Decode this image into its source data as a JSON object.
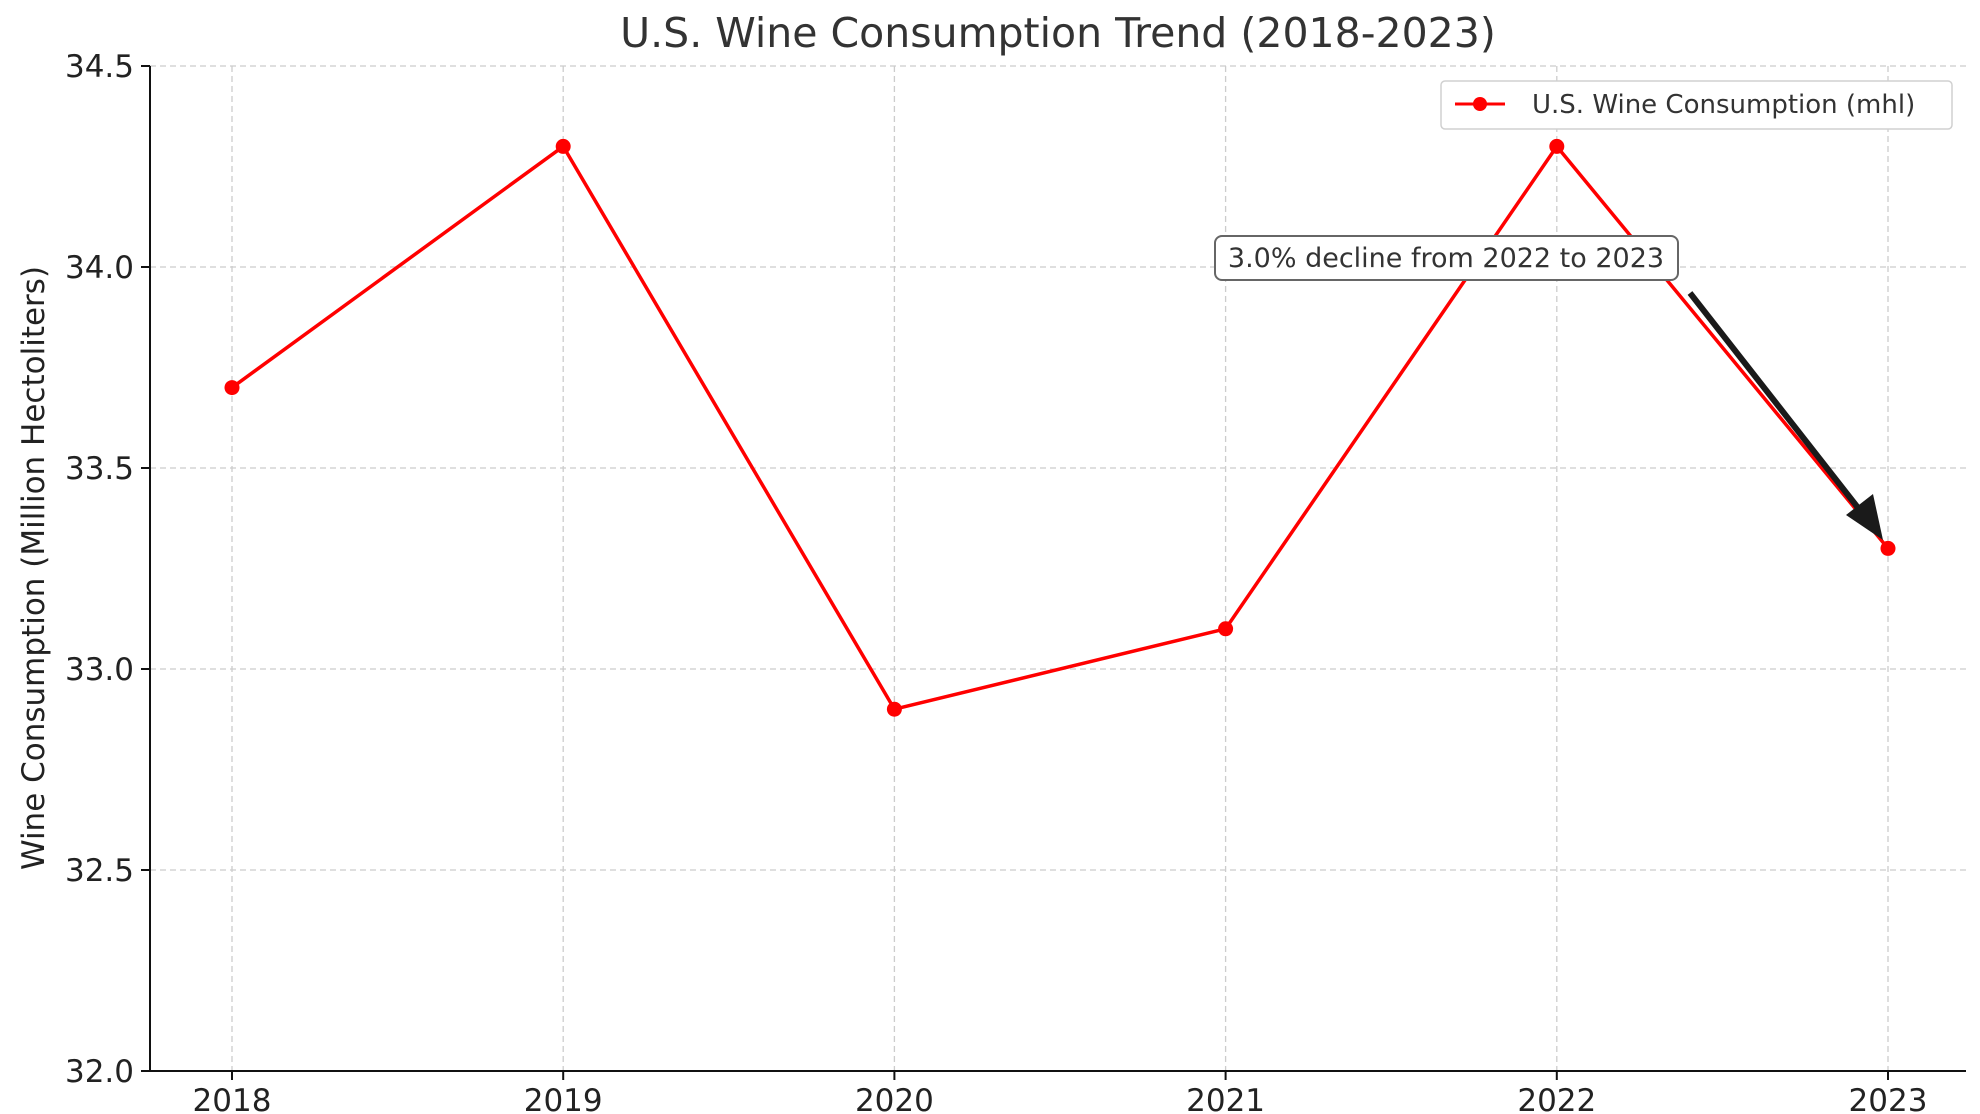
{
  "chart_data": {
    "type": "line",
    "title": "U.S. Wine Consumption Trend (2018-2023)",
    "xlabel": "",
    "ylabel": "Wine Consumption (Million Hectoliters)",
    "categories": [
      "2018",
      "2019",
      "2020",
      "2021",
      "2022",
      "2023"
    ],
    "series": [
      {
        "name": "U.S. Wine Consumption (mhl)",
        "values": [
          33.7,
          34.3,
          32.9,
          33.1,
          34.3,
          33.3
        ],
        "color": "#ff0000",
        "marker": "circle"
      }
    ],
    "ylim": [
      32.0,
      34.5
    ],
    "yticks": [
      "32.0",
      "32.5",
      "33.0",
      "33.5",
      "34.0",
      "34.5"
    ],
    "grid": true,
    "legend_position": "top-right",
    "annotations": [
      {
        "text": "3.0% decline from 2022 to 2023",
        "points_to": {
          "x": "2023",
          "y": 33.3
        },
        "arrow_color": "#1a1a1a"
      }
    ]
  }
}
